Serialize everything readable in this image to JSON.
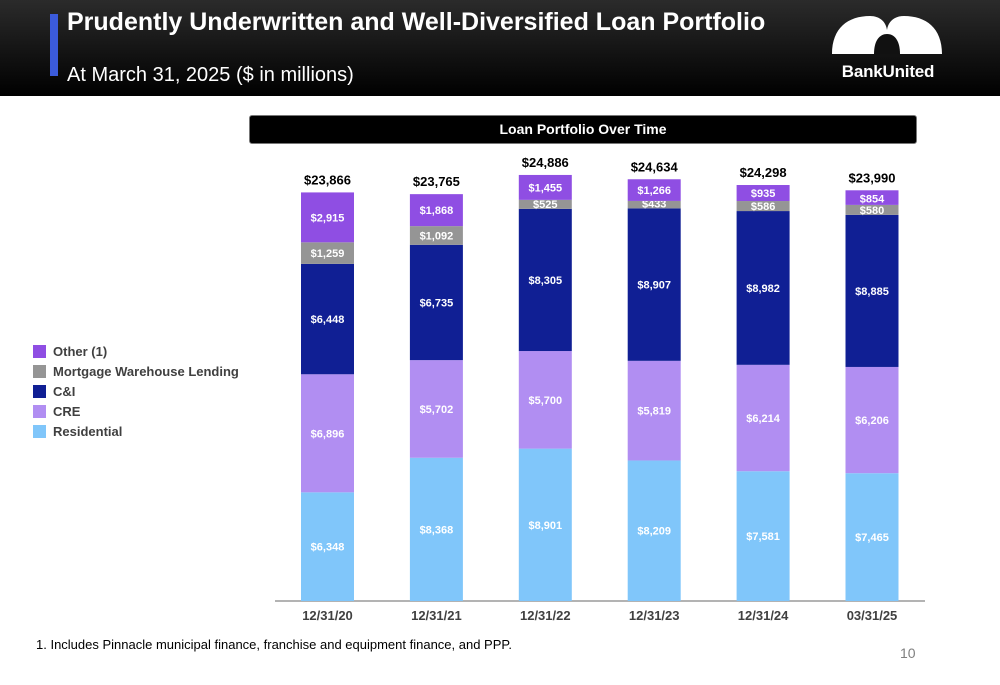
{
  "header": {
    "title": "Prudently Underwritten and Well-Diversified Loan Portfolio",
    "subtitle": "At March 31, 2025 ($ in millions)",
    "logo_text": "BankUnited"
  },
  "colors": {
    "header_bg": "#000000",
    "accent": "#3b5bdb",
    "residential": "#80c6fa",
    "cre": "#b18ef2",
    "ci": "#101f94",
    "mortgage_warehouse": "#959595",
    "other": "#8f4ee3"
  },
  "chart_data": {
    "type": "bar",
    "stacked": true,
    "title": "Loan Portfolio Over Time",
    "categories": [
      "12/31/20",
      "12/31/21",
      "12/31/22",
      "12/31/23",
      "12/31/24",
      "03/31/25"
    ],
    "totals": [
      "$23,866",
      "$23,765",
      "$24,886",
      "$24,634",
      "$24,298",
      "$23,990"
    ],
    "series": [
      {
        "name": "Residential",
        "color": "#80c6fa",
        "values": [
          6348,
          8368,
          8901,
          8209,
          7581,
          7465
        ],
        "labels": [
          "$6,348",
          "$8,368",
          "$8,901",
          "$8,209",
          "$7,581",
          "$7,465"
        ]
      },
      {
        "name": "CRE",
        "color": "#b18ef2",
        "values": [
          6896,
          5702,
          5700,
          5819,
          6214,
          6206
        ],
        "labels": [
          "$6,896",
          "$5,702",
          "$5,700",
          "$5,819",
          "$6,214",
          "$6,206"
        ]
      },
      {
        "name": "C&I",
        "color": "#101f94",
        "values": [
          6448,
          6735,
          8305,
          8907,
          8982,
          8885
        ],
        "labels": [
          "$6,448",
          "$6,735",
          "$8,305",
          "$8,907",
          "$8,982",
          "$8,885"
        ]
      },
      {
        "name": "Mortgage Warehouse Lending",
        "color": "#959595",
        "values": [
          1259,
          1092,
          525,
          433,
          586,
          580
        ],
        "labels": [
          "$1,259",
          "$1,092",
          "$525",
          "$433",
          "$586",
          "$580"
        ]
      },
      {
        "name": "Other (1)",
        "color": "#8f4ee3",
        "values": [
          2915,
          1868,
          1455,
          1266,
          935,
          854
        ],
        "labels": [
          "$2,915",
          "$1,868",
          "$1,455",
          "$1,266",
          "$935",
          "$854"
        ]
      }
    ],
    "legend_position": "left",
    "grid": false
  },
  "legend": [
    {
      "label": "Other (1)",
      "color": "#8f4ee3"
    },
    {
      "label": "Mortgage Warehouse Lending",
      "color": "#959595"
    },
    {
      "label": "C&I",
      "color": "#101f94"
    },
    {
      "label": "CRE",
      "color": "#b18ef2"
    },
    {
      "label": "Residential",
      "color": "#80c6fa"
    }
  ],
  "footnote": "1.    Includes Pinnacle municipal finance, franchise and equipment finance, and PPP.",
  "page_number": "10"
}
